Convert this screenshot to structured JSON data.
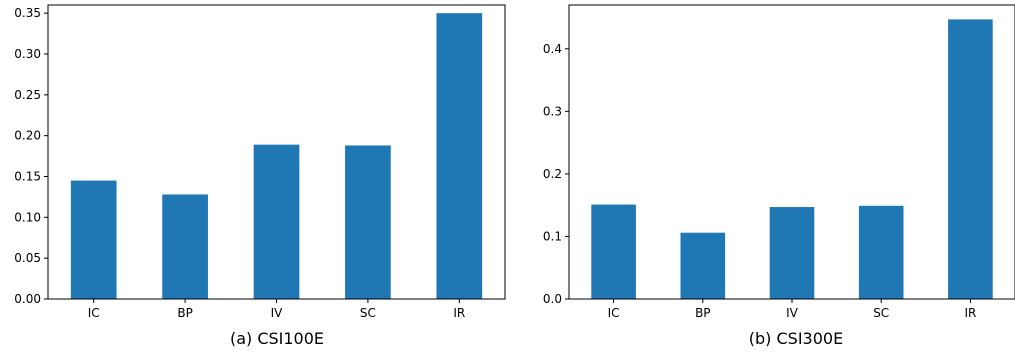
{
  "chart_data": [
    {
      "type": "bar",
      "caption": "(a) CSI100E",
      "categories": [
        "IC",
        "BP",
        "IV",
        "SC",
        "IR"
      ],
      "values": [
        0.145,
        0.128,
        0.189,
        0.188,
        0.35
      ],
      "ylim": [
        0,
        0.36
      ],
      "yticks": [
        "0.00",
        "0.05",
        "0.10",
        "0.15",
        "0.20",
        "0.25",
        "0.30",
        "0.35"
      ],
      "ytick_values": [
        0,
        0.05,
        0.1,
        0.15,
        0.2,
        0.25,
        0.3,
        0.35
      ],
      "bar_color": "#1f77b4",
      "grid": false,
      "legend": false
    },
    {
      "type": "bar",
      "caption": "(b) CSI300E",
      "categories": [
        "IC",
        "BP",
        "IV",
        "SC",
        "IR"
      ],
      "values": [
        0.151,
        0.106,
        0.147,
        0.149,
        0.447
      ],
      "ylim": [
        0,
        0.47
      ],
      "yticks": [
        "0.0",
        "0.1",
        "0.2",
        "0.3",
        "0.4"
      ],
      "ytick_values": [
        0,
        0.1,
        0.2,
        0.3,
        0.4
      ],
      "bar_color": "#1f77b4",
      "grid": false,
      "legend": false
    }
  ]
}
